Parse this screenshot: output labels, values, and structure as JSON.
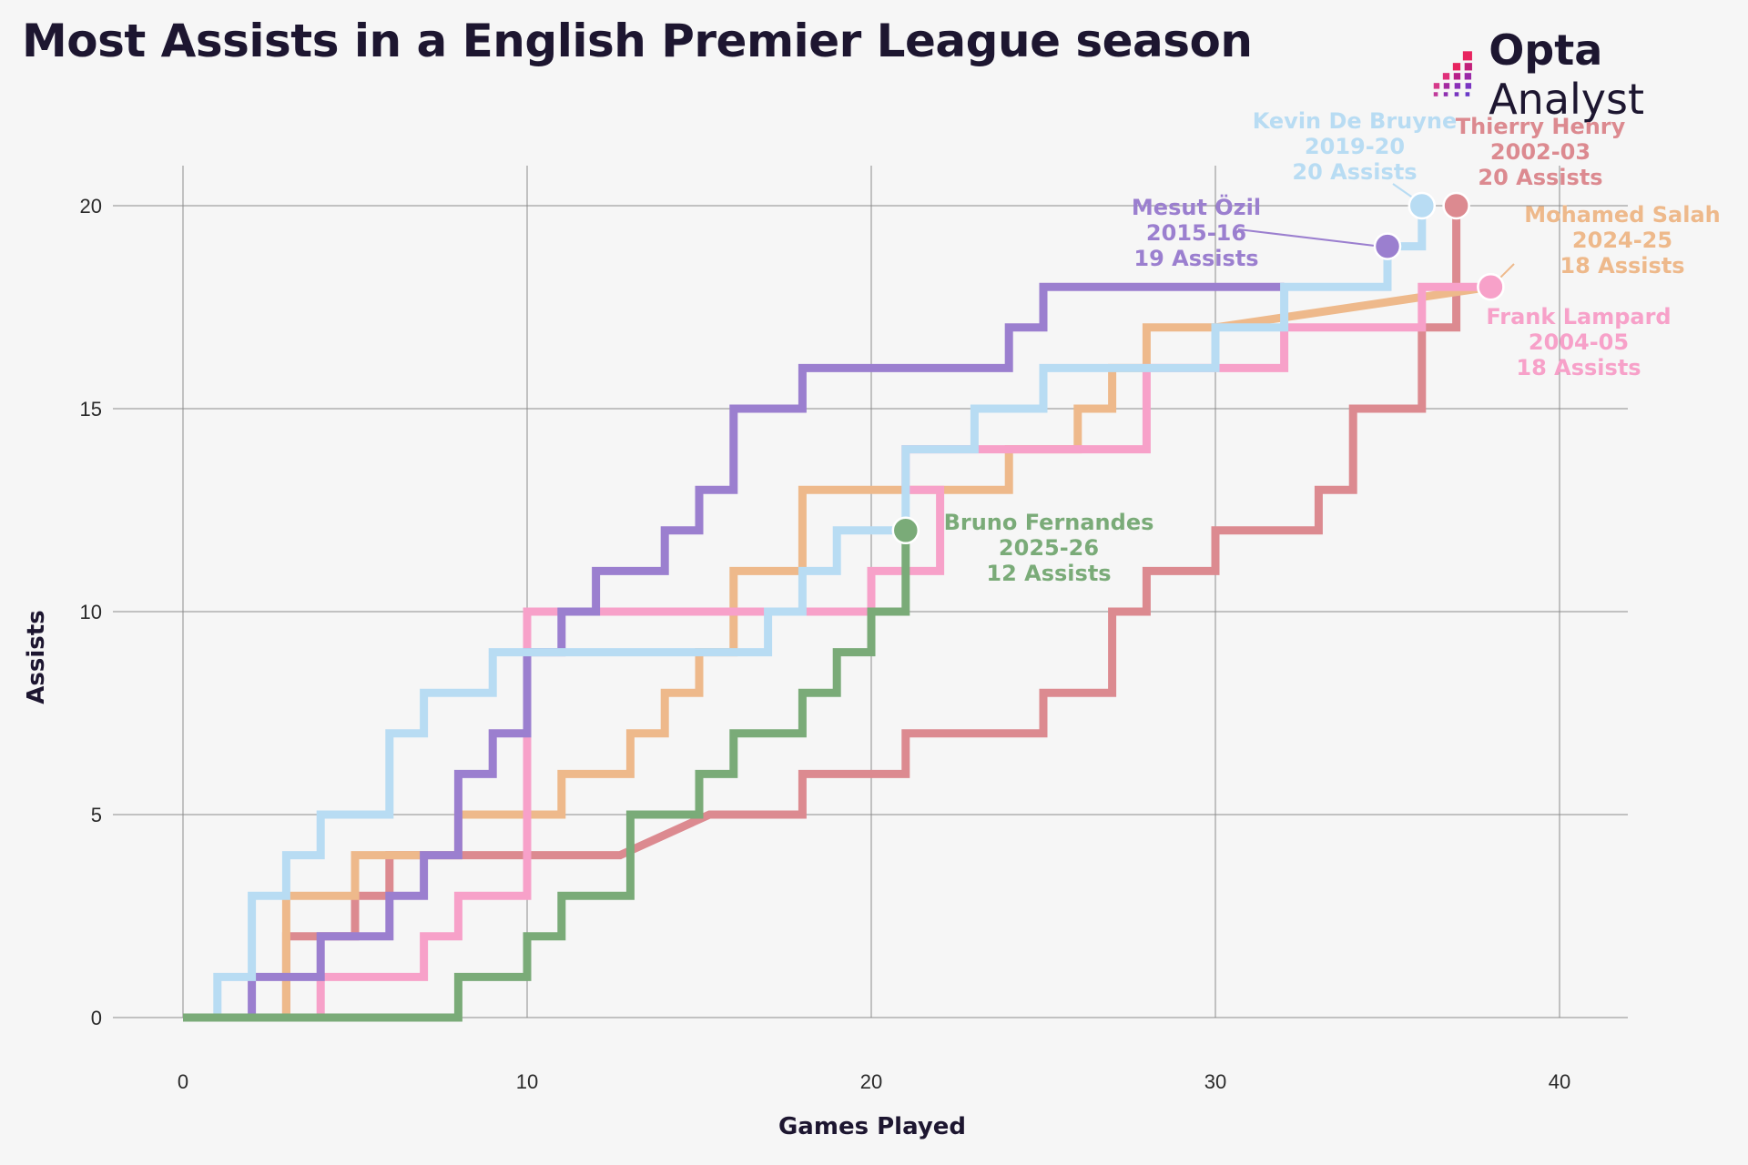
{
  "header": {
    "title": "Most Assists in a English Premier League season",
    "brand_bold": "Opta",
    "brand_light": " Analyst"
  },
  "chart_data": {
    "type": "line",
    "title": "Most Assists in a English Premier League season",
    "xlabel": "Games Played",
    "ylabel": "Assists",
    "xlim": [
      0,
      42
    ],
    "ylim": [
      0,
      21
    ],
    "x_ticks": [
      0,
      10,
      20,
      30,
      40
    ],
    "y_ticks": [
      0,
      5,
      10,
      15,
      20
    ],
    "grid": true,
    "step": true,
    "series": [
      {
        "id": "henry",
        "name": "Thierry Henry",
        "season": "2002-03",
        "total_label": "20 Assists",
        "color": "#dc8a90",
        "points": [
          [
            3,
            0
          ],
          [
            3,
            2
          ],
          [
            5,
            2
          ],
          [
            5,
            3
          ],
          [
            6,
            3
          ],
          [
            6,
            4
          ],
          [
            12.7,
            4
          ],
          [
            15.3,
            5
          ],
          [
            18,
            5
          ],
          [
            18,
            6
          ],
          [
            21,
            6
          ],
          [
            21,
            7
          ],
          [
            25,
            7
          ],
          [
            25,
            8
          ],
          [
            27,
            8
          ],
          [
            27,
            10
          ],
          [
            28,
            10
          ],
          [
            28,
            11
          ],
          [
            30,
            11
          ],
          [
            30,
            12
          ],
          [
            33,
            12
          ],
          [
            33,
            13
          ],
          [
            34,
            13
          ],
          [
            34,
            15
          ],
          [
            36,
            15
          ],
          [
            36,
            17
          ],
          [
            37,
            17
          ],
          [
            37,
            20
          ]
        ],
        "end": [
          37,
          20
        ]
      },
      {
        "id": "salah",
        "name": "Mohamed Salah",
        "season": "2024-25",
        "total_label": "18 Assists",
        "color": "#eeb98b",
        "points": [
          [
            3,
            0
          ],
          [
            3,
            3
          ],
          [
            5,
            3
          ],
          [
            5,
            4
          ],
          [
            6,
            4
          ],
          [
            8,
            4
          ],
          [
            8,
            5
          ],
          [
            11,
            5
          ],
          [
            11,
            6
          ],
          [
            13,
            6
          ],
          [
            13,
            7
          ],
          [
            14,
            7
          ],
          [
            14,
            8
          ],
          [
            15,
            8
          ],
          [
            15,
            9
          ],
          [
            16,
            9
          ],
          [
            16,
            11
          ],
          [
            18,
            11
          ],
          [
            18,
            13
          ],
          [
            24,
            13
          ],
          [
            24,
            14
          ],
          [
            26,
            14
          ],
          [
            26,
            15
          ],
          [
            27,
            15
          ],
          [
            27,
            16
          ],
          [
            28,
            16
          ],
          [
            28,
            17
          ],
          [
            30,
            17
          ],
          [
            38,
            18
          ]
        ],
        "end": [
          38,
          18
        ]
      },
      {
        "id": "lampard",
        "name": "Frank Lampard",
        "season": "2004-05",
        "total_label": "18 Assists",
        "color": "#f7a1c9",
        "points": [
          [
            4,
            0
          ],
          [
            4,
            1
          ],
          [
            7,
            1
          ],
          [
            7,
            2
          ],
          [
            8,
            2
          ],
          [
            8,
            3
          ],
          [
            10,
            3
          ],
          [
            10,
            5
          ],
          [
            10,
            10
          ],
          [
            20,
            10
          ],
          [
            20,
            11
          ],
          [
            22,
            11
          ],
          [
            22,
            13
          ],
          [
            21,
            13
          ],
          [
            21,
            14
          ],
          [
            28,
            14
          ],
          [
            28,
            16
          ],
          [
            32,
            16
          ],
          [
            32,
            17
          ],
          [
            36,
            17
          ],
          [
            36,
            18
          ],
          [
            38,
            18
          ]
        ],
        "end": [
          38,
          18
        ]
      },
      {
        "id": "ozil",
        "name": "Mesut Özil",
        "season": "2015-16",
        "total_label": "19 Assists",
        "color": "#9b7fcf",
        "points": [
          [
            2,
            0
          ],
          [
            2,
            1
          ],
          [
            4,
            1
          ],
          [
            4,
            2
          ],
          [
            6,
            2
          ],
          [
            6,
            3
          ],
          [
            7,
            3
          ],
          [
            7,
            4
          ],
          [
            8,
            4
          ],
          [
            8,
            6
          ],
          [
            9,
            6
          ],
          [
            9,
            7
          ],
          [
            10,
            7
          ],
          [
            10,
            9
          ],
          [
            11,
            9
          ],
          [
            11,
            10
          ],
          [
            12,
            10
          ],
          [
            12,
            11
          ],
          [
            14,
            11
          ],
          [
            14,
            12
          ],
          [
            15,
            12
          ],
          [
            15,
            13
          ],
          [
            16,
            13
          ],
          [
            16,
            15
          ],
          [
            18,
            15
          ],
          [
            18,
            16
          ],
          [
            24,
            16
          ],
          [
            24,
            17
          ],
          [
            25,
            17
          ],
          [
            25,
            18
          ],
          [
            32,
            18
          ]
        ],
        "end": [
          35,
          19
        ]
      },
      {
        "id": "debruyne",
        "name": "Kevin De Bruyne",
        "season": "2019-20",
        "total_label": "20 Assists",
        "color": "#b8dcf3",
        "points": [
          [
            1,
            0
          ],
          [
            1,
            1
          ],
          [
            2,
            1
          ],
          [
            2,
            3
          ],
          [
            3,
            3
          ],
          [
            3,
            4
          ],
          [
            4,
            4
          ],
          [
            4,
            5
          ],
          [
            6,
            5
          ],
          [
            6,
            7
          ],
          [
            7,
            7
          ],
          [
            7,
            8
          ],
          [
            9,
            8
          ],
          [
            9,
            9
          ],
          [
            17,
            9
          ],
          [
            17,
            10
          ],
          [
            18,
            10
          ],
          [
            18,
            11
          ],
          [
            19,
            11
          ],
          [
            19,
            12
          ],
          [
            21,
            12
          ],
          [
            21,
            14
          ],
          [
            23,
            14
          ],
          [
            23,
            15
          ],
          [
            25,
            15
          ],
          [
            25,
            16
          ],
          [
            30,
            16
          ],
          [
            30,
            17
          ],
          [
            32,
            17
          ],
          [
            32,
            18
          ],
          [
            35,
            18
          ],
          [
            35,
            19
          ],
          [
            36,
            19
          ],
          [
            36,
            20
          ]
        ],
        "end": [
          36,
          20
        ]
      },
      {
        "id": "fernandes",
        "name": "Bruno Fernandes",
        "season": "2025-26",
        "total_label": "12 Assists",
        "color": "#7aab78",
        "points": [
          [
            0,
            0
          ],
          [
            8,
            0
          ],
          [
            8,
            1
          ],
          [
            10,
            1
          ],
          [
            10,
            2
          ],
          [
            11,
            2
          ],
          [
            11,
            3
          ],
          [
            13,
            3
          ],
          [
            13,
            5
          ],
          [
            15,
            5
          ],
          [
            15,
            6
          ],
          [
            16,
            6
          ],
          [
            16,
            7
          ],
          [
            18,
            7
          ],
          [
            18,
            8
          ],
          [
            19,
            8
          ],
          [
            19,
            9
          ],
          [
            20,
            9
          ],
          [
            20,
            10
          ],
          [
            21,
            10
          ],
          [
            21,
            12
          ]
        ],
        "end": [
          21,
          12
        ]
      }
    ]
  }
}
